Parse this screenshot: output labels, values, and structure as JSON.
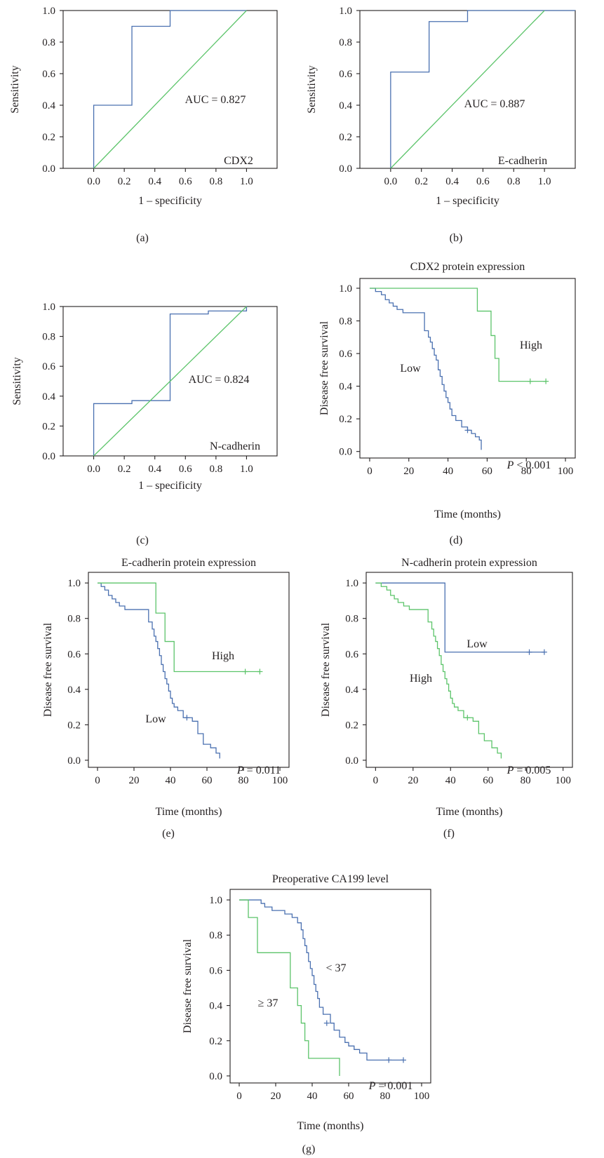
{
  "colors": {
    "blue": "#4a70b0",
    "green": "#5cc46a",
    "axis": "#231f20"
  },
  "chart_data": [
    {
      "id": "a",
      "type": "line",
      "panel_label": "(a)",
      "title": "",
      "xlabel": "1 – specificity",
      "ylabel": "Sensitivity",
      "xlim": [
        -0.2,
        1.2
      ],
      "ylim": [
        0,
        1
      ],
      "xticks": [
        "0.0",
        "0.2",
        "0.4",
        "0.6",
        "0.8",
        "1.0"
      ],
      "yticks": [
        "0.0",
        "0.2",
        "0.4",
        "0.6",
        "0.8",
        "1.0"
      ],
      "annotations": [
        "AUC = 0.827",
        "CDX2"
      ],
      "series": [
        {
          "color": "blue",
          "step": true,
          "x": [
            0,
            0,
            0.25,
            0.25,
            0.5,
            0.5,
            1.0
          ],
          "y": [
            0,
            0.4,
            0.4,
            0.9,
            0.9,
            1.0,
            1.0
          ]
        },
        {
          "color": "green",
          "step": false,
          "x": [
            0,
            1
          ],
          "y": [
            0,
            1
          ]
        }
      ]
    },
    {
      "id": "b",
      "type": "line",
      "panel_label": "(b)",
      "title": "",
      "xlabel": "1 – specificity",
      "ylabel": "Sensitivity",
      "xlim": [
        -0.2,
        1.2
      ],
      "ylim": [
        0,
        1
      ],
      "xticks": [
        "0.0",
        "0.2",
        "0.4",
        "0.6",
        "0.8",
        "1.0"
      ],
      "yticks": [
        "0.0",
        "0.2",
        "0.4",
        "0.6",
        "0.8",
        "1.0"
      ],
      "annotations": [
        "AUC = 0.887",
        "E-cadherin"
      ],
      "series": [
        {
          "color": "blue",
          "step": true,
          "x": [
            0,
            0,
            0.25,
            0.25,
            0.5,
            0.5,
            1.2
          ],
          "y": [
            0,
            0.61,
            0.61,
            0.93,
            0.93,
            1.0,
            1.0
          ]
        },
        {
          "color": "green",
          "step": false,
          "x": [
            0,
            1
          ],
          "y": [
            0,
            1
          ]
        }
      ]
    },
    {
      "id": "c",
      "type": "line",
      "panel_label": "(c)",
      "title": "",
      "xlabel": "1 – specificity",
      "ylabel": "Sensitivity",
      "xlim": [
        -0.2,
        1.2
      ],
      "ylim": [
        0,
        1
      ],
      "xticks": [
        "0.0",
        "0.2",
        "0.4",
        "0.6",
        "0.8",
        "1.0"
      ],
      "yticks": [
        "0.0",
        "0.2",
        "0.4",
        "0.6",
        "0.8",
        "1.0"
      ],
      "annotations": [
        "AUC = 0.824",
        "N-cadherin"
      ],
      "series": [
        {
          "color": "blue",
          "step": true,
          "x": [
            0,
            0,
            0.25,
            0.25,
            0.5,
            0.5,
            0.75,
            0.75,
            1.0
          ],
          "y": [
            0,
            0.35,
            0.35,
            0.37,
            0.37,
            0.95,
            0.95,
            0.97,
            1.0
          ]
        },
        {
          "color": "green",
          "step": false,
          "x": [
            0,
            1
          ],
          "y": [
            0,
            1
          ]
        }
      ]
    },
    {
      "id": "d",
      "type": "line",
      "panel_label": "(d)",
      "title": "CDX2 protein expression",
      "xlabel": "Time (months)",
      "ylabel": "Disease free survival",
      "xlim": [
        -5,
        105
      ],
      "ylim": [
        -0.04,
        1.06
      ],
      "xticks": [
        "0",
        "20",
        "40",
        "60",
        "80",
        "100"
      ],
      "yticks": [
        "0.0",
        "0.2",
        "0.4",
        "0.6",
        "0.8",
        "1.0"
      ],
      "annotations": [
        "Low",
        "High",
        "P < 0.001"
      ],
      "series": [
        {
          "name": "Low",
          "color": "blue",
          "step": true,
          "x": [
            0,
            3,
            6,
            8,
            10,
            12,
            14,
            17,
            20,
            25,
            28,
            30,
            31,
            32,
            33,
            34,
            35,
            36,
            37,
            38,
            39,
            40,
            41,
            42,
            44,
            47,
            50,
            52,
            54,
            56,
            57
          ],
          "y": [
            1.0,
            0.98,
            0.96,
            0.93,
            0.91,
            0.89,
            0.87,
            0.85,
            0.85,
            0.85,
            0.74,
            0.7,
            0.67,
            0.63,
            0.59,
            0.56,
            0.5,
            0.46,
            0.41,
            0.37,
            0.33,
            0.3,
            0.26,
            0.22,
            0.19,
            0.15,
            0.13,
            0.11,
            0.09,
            0.07,
            0.01
          ],
          "censors": [
            [
              50,
              0.13
            ]
          ]
        },
        {
          "name": "High",
          "color": "green",
          "step": true,
          "x": [
            0,
            55,
            62,
            64,
            66,
            90
          ],
          "y": [
            1.0,
            0.86,
            0.71,
            0.57,
            0.43,
            0.43
          ],
          "censors": [
            [
              82,
              0.43
            ],
            [
              90,
              0.43
            ]
          ]
        }
      ]
    },
    {
      "id": "e",
      "type": "line",
      "panel_label": "(e)",
      "title": "E-cadherin protein expression",
      "xlabel": "Time (months)",
      "ylabel": "Disease free survival",
      "xlim": [
        -5,
        105
      ],
      "ylim": [
        -0.04,
        1.06
      ],
      "xticks": [
        "0",
        "20",
        "40",
        "60",
        "80",
        "100"
      ],
      "yticks": [
        "0.0",
        "0.2",
        "0.4",
        "0.6",
        "0.8",
        "1.0"
      ],
      "annotations": [
        "High",
        "Low",
        "P = 0.011"
      ],
      "series": [
        {
          "name": "Low",
          "color": "blue",
          "step": true,
          "x": [
            0,
            2,
            4,
            6,
            8,
            10,
            12,
            15,
            18,
            25,
            28,
            30,
            31,
            32,
            33,
            34,
            35,
            36,
            37,
            38,
            39,
            40,
            41,
            42,
            44,
            47,
            52,
            55,
            58,
            62,
            65,
            67
          ],
          "y": [
            1.0,
            0.98,
            0.96,
            0.93,
            0.91,
            0.89,
            0.87,
            0.85,
            0.85,
            0.85,
            0.78,
            0.74,
            0.7,
            0.67,
            0.63,
            0.59,
            0.54,
            0.5,
            0.46,
            0.43,
            0.39,
            0.35,
            0.32,
            0.3,
            0.28,
            0.24,
            0.22,
            0.15,
            0.09,
            0.07,
            0.04,
            0.01
          ],
          "censors": [
            [
              49,
              0.24
            ]
          ]
        },
        {
          "name": "High",
          "color": "green",
          "step": true,
          "x": [
            0,
            32,
            37,
            42,
            89
          ],
          "y": [
            1.0,
            0.83,
            0.67,
            0.5,
            0.5
          ],
          "censors": [
            [
              81,
              0.5
            ],
            [
              89,
              0.5
            ]
          ]
        }
      ]
    },
    {
      "id": "f",
      "type": "line",
      "panel_label": "(f)",
      "title": "N-cadherin protein expression",
      "xlabel": "Time (months)",
      "ylabel": "Disease free survival",
      "xlim": [
        -5,
        105
      ],
      "ylim": [
        -0.04,
        1.06
      ],
      "xticks": [
        "0",
        "20",
        "40",
        "60",
        "80",
        "100"
      ],
      "yticks": [
        "0.0",
        "0.2",
        "0.4",
        "0.6",
        "0.8",
        "1.0"
      ],
      "annotations": [
        "Low",
        "High",
        "P = 0.005"
      ],
      "series": [
        {
          "name": "Low",
          "color": "blue",
          "step": true,
          "x": [
            0,
            37,
            90
          ],
          "y": [
            1.0,
            0.61,
            0.61
          ],
          "censors": [
            [
              82,
              0.61
            ],
            [
              90,
              0.61
            ]
          ]
        },
        {
          "name": "High",
          "color": "green",
          "step": true,
          "x": [
            0,
            3,
            6,
            8,
            10,
            12,
            15,
            18,
            25,
            28,
            30,
            31,
            32,
            33,
            34,
            35,
            36,
            37,
            38,
            39,
            40,
            41,
            42,
            44,
            47,
            52,
            55,
            58,
            62,
            65,
            67
          ],
          "y": [
            1.0,
            0.98,
            0.96,
            0.93,
            0.91,
            0.89,
            0.87,
            0.85,
            0.85,
            0.78,
            0.74,
            0.7,
            0.67,
            0.63,
            0.59,
            0.54,
            0.5,
            0.46,
            0.43,
            0.39,
            0.35,
            0.32,
            0.3,
            0.28,
            0.24,
            0.22,
            0.15,
            0.11,
            0.07,
            0.04,
            0.01
          ],
          "censors": [
            [
              49,
              0.24
            ]
          ]
        }
      ]
    },
    {
      "id": "g",
      "type": "line",
      "panel_label": "(g)",
      "title": "Preoperative CA199 level",
      "xlabel": "Time (months)",
      "ylabel": "Disease free survival",
      "xlim": [
        -5,
        105
      ],
      "ylim": [
        -0.04,
        1.06
      ],
      "xticks": [
        "0",
        "20",
        "40",
        "60",
        "80",
        "100"
      ],
      "yticks": [
        "0.0",
        "0.2",
        "0.4",
        "0.6",
        "0.8",
        "1.0"
      ],
      "annotations": [
        "< 37",
        "≥ 37",
        "P = 0.001"
      ],
      "series": [
        {
          "name": "< 37",
          "color": "blue",
          "step": true,
          "x": [
            0,
            12,
            14,
            18,
            25,
            29,
            32,
            34,
            35,
            36,
            37,
            38,
            39,
            40,
            41,
            42,
            43,
            44,
            46,
            50,
            52,
            55,
            58,
            60,
            63,
            66,
            70,
            90
          ],
          "y": [
            1.0,
            0.98,
            0.96,
            0.94,
            0.92,
            0.9,
            0.87,
            0.83,
            0.78,
            0.74,
            0.7,
            0.65,
            0.61,
            0.57,
            0.52,
            0.48,
            0.44,
            0.39,
            0.35,
            0.3,
            0.26,
            0.22,
            0.19,
            0.17,
            0.15,
            0.13,
            0.09,
            0.09
          ],
          "censors": [
            [
              48,
              0.3
            ],
            [
              82,
              0.09
            ],
            [
              90,
              0.09
            ]
          ]
        },
        {
          "name": "≥ 37",
          "color": "green",
          "step": true,
          "x": [
            0,
            5,
            10,
            28,
            32,
            34,
            36,
            38,
            55
          ],
          "y": [
            1.0,
            0.9,
            0.7,
            0.5,
            0.4,
            0.3,
            0.2,
            0.1,
            0.0
          ],
          "censors": []
        }
      ]
    }
  ]
}
